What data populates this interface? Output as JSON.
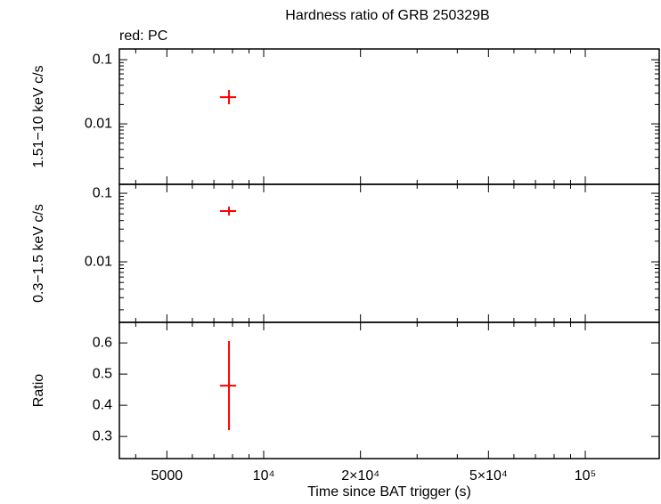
{
  "chart_data": [
    {
      "type": "scatter",
      "title": "Hardness ratio of GRB 250329B",
      "annotation": "red: PC",
      "ylabel": "1.51−10 keV c/s",
      "xscale": "log",
      "xlim": [
        3558,
        169800
      ],
      "yscale": "log",
      "ylim": [
        0.00114,
        0.147
      ],
      "yticks": [
        0.1,
        0.01
      ],
      "yminorticks": [
        0.002,
        0.003,
        0.004,
        0.005,
        0.006,
        0.007,
        0.008,
        0.009,
        0.02,
        0.03,
        0.04,
        0.05,
        0.06,
        0.07,
        0.08,
        0.09
      ],
      "series": [
        {
          "color": "#ff0000",
          "x": [
            7800
          ],
          "xerr_minus": [
            490
          ],
          "xerr_plus": [
            410
          ],
          "values": [
            0.0261
          ],
          "yerr_minus": [
            0.0059
          ],
          "yerr_plus": [
            0.0076
          ]
        }
      ]
    },
    {
      "type": "scatter",
      "ylabel": "0.3−1.5 keV c/s",
      "xscale": "log",
      "xlim": [
        3558,
        169800
      ],
      "yscale": "log",
      "ylim": [
        0.00131,
        0.135
      ],
      "yticks": [
        0.1,
        0.01
      ],
      "yminorticks": [
        0.002,
        0.003,
        0.004,
        0.005,
        0.006,
        0.007,
        0.008,
        0.009,
        0.02,
        0.03,
        0.04,
        0.05,
        0.06,
        0.07,
        0.08,
        0.09
      ],
      "series": [
        {
          "color": "#ff0000",
          "x": [
            7800
          ],
          "xerr_minus": [
            490
          ],
          "xerr_plus": [
            410
          ],
          "values": [
            0.055
          ],
          "yerr_minus": [
            0.0077
          ],
          "yerr_plus": [
            0.0088
          ]
        }
      ]
    },
    {
      "type": "scatter",
      "ylabel": "Ratio",
      "xlabel": "Time since BAT trigger (s)",
      "xscale": "log",
      "xlim": [
        3558,
        169800
      ],
      "xticks": [
        5000,
        {
          "value": 10000,
          "label": "10⁴"
        },
        {
          "value": 20000,
          "label": "2×10⁴"
        },
        {
          "value": 50000,
          "label": "5×10⁴"
        },
        {
          "value": 100000,
          "label": "10⁵"
        }
      ],
      "xminorticks": [
        4000,
        6000,
        7000,
        8000,
        9000,
        30000,
        40000,
        60000,
        70000,
        80000,
        90000
      ],
      "yscale": "linear",
      "ylim": [
        0.229,
        0.666
      ],
      "yticks": [
        0.3,
        0.4,
        0.5,
        0.6
      ],
      "series": [
        {
          "color": "#ff0000",
          "x": [
            7800
          ],
          "xerr_minus": [
            490
          ],
          "xerr_plus": [
            410
          ],
          "values": [
            0.463
          ],
          "yerr_minus": [
            0.143
          ],
          "yerr_plus": [
            0.143
          ]
        }
      ]
    }
  ]
}
